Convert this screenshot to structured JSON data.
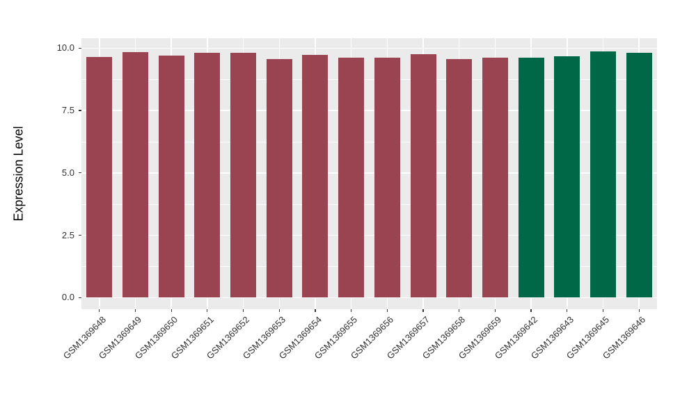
{
  "chart_data": {
    "type": "bar",
    "title": "",
    "xlabel": "",
    "ylabel": "Expression Level",
    "ylim": [
      0,
      10
    ],
    "yticks": [
      0.0,
      2.5,
      5.0,
      7.5,
      10.0
    ],
    "ytick_labels": [
      "0.0",
      "2.5",
      "5.0",
      "7.5",
      "10.0"
    ],
    "yminor": [
      1.25,
      3.75,
      6.25,
      8.75
    ],
    "grid": true,
    "legend": false,
    "categories": [
      "GSM1369648",
      "GSM1369649",
      "GSM1369650",
      "GSM1369651",
      "GSM1369652",
      "GSM1369653",
      "GSM1369654",
      "GSM1369655",
      "GSM1369656",
      "GSM1369657",
      "GSM1369658",
      "GSM1369659",
      "GSM1369642",
      "GSM1369643",
      "GSM1369645",
      "GSM1369646"
    ],
    "values": [
      9.65,
      9.85,
      9.7,
      9.82,
      9.82,
      9.56,
      9.72,
      9.61,
      9.62,
      9.76,
      9.56,
      9.62,
      9.62,
      9.67,
      9.88,
      9.81
    ],
    "bar_colors": [
      "#9A4452",
      "#9A4452",
      "#9A4452",
      "#9A4452",
      "#9A4452",
      "#9A4452",
      "#9A4452",
      "#9A4452",
      "#9A4452",
      "#9A4452",
      "#9A4452",
      "#9A4452",
      "#006847",
      "#006847",
      "#006847",
      "#006847"
    ]
  },
  "colors": {
    "group_red": "#9A4452",
    "group_green": "#006847",
    "panel_bg": "#EBEBEB",
    "gridline": "#FFFFFF",
    "axis_text": "#303030",
    "tick_mark": "#333333"
  }
}
